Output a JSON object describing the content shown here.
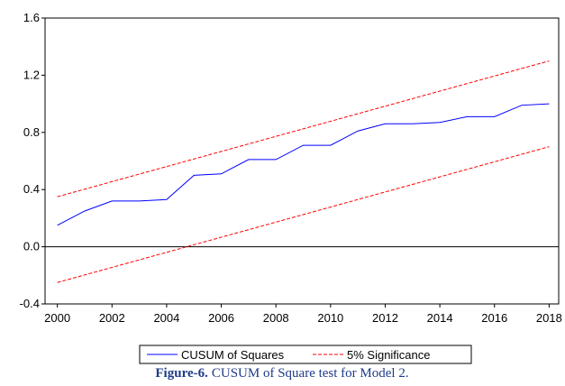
{
  "chart_data": {
    "type": "line",
    "x": [
      2000,
      2001,
      2002,
      2003,
      2004,
      2005,
      2006,
      2007,
      2008,
      2009,
      2010,
      2011,
      2012,
      2013,
      2014,
      2015,
      2016,
      2017,
      2018
    ],
    "series": [
      {
        "name": "CUSUM of Squares",
        "color": "#0000ff",
        "dash": false,
        "values": [
          0.15,
          0.25,
          0.32,
          0.32,
          0.33,
          0.5,
          0.51,
          0.61,
          0.61,
          0.71,
          0.71,
          0.81,
          0.86,
          0.86,
          0.87,
          0.91,
          0.91,
          0.99,
          1.0
        ]
      },
      {
        "name": "5% Significance",
        "color": "#ff0000",
        "dash": true,
        "x": [
          2000,
          2018,
          null,
          2000,
          2018
        ],
        "values": [
          0.35,
          1.3,
          null,
          -0.25,
          0.7
        ]
      }
    ],
    "xlim": [
      1999.55,
      2018.35
    ],
    "xticks": [
      2000,
      2002,
      2004,
      2006,
      2008,
      2010,
      2012,
      2014,
      2016,
      2018
    ],
    "ylim": [
      -0.4,
      1.6
    ],
    "yticks": [
      {
        "value": -0.4,
        "label": "-0.4"
      },
      {
        "value": 0,
        "label": "0.0"
      },
      0.4,
      0.8,
      1.2,
      1.6
    ],
    "hline": 0,
    "caption_label": "Figure-6.",
    "caption": "CUSUM of Square test for Model 2."
  }
}
